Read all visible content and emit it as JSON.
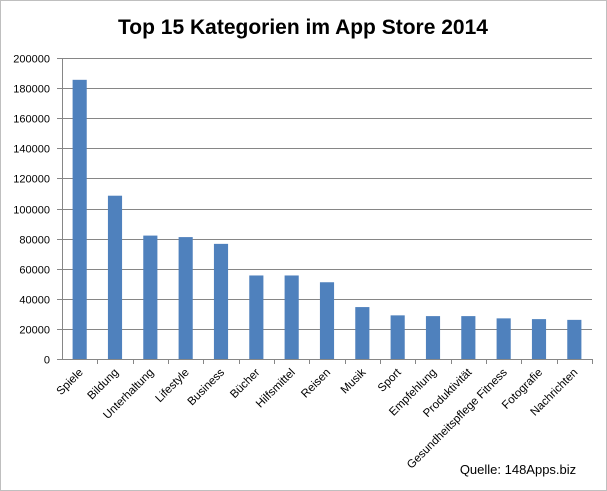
{
  "chart_data": {
    "type": "bar",
    "title": "Top 15 Kategorien im App Store 2014",
    "xlabel": "",
    "ylabel": "",
    "ylim": [
      0,
      200000
    ],
    "yticks": [
      0,
      20000,
      40000,
      60000,
      80000,
      100000,
      120000,
      140000,
      160000,
      180000,
      200000
    ],
    "grid": true,
    "legend": "none",
    "categories": [
      "Spiele",
      "Bildung",
      "Unterhaltung",
      "Lifestyle",
      "Business",
      "Bücher",
      "Hilfsmittel",
      "Reisen",
      "Musik",
      "Sport",
      "Empfehlung",
      "Produktivität",
      "Gesundheitspflege Fitness",
      "Fotografie",
      "Nachrichten"
    ],
    "values": [
      185500,
      108500,
      82000,
      81000,
      76500,
      55500,
      55500,
      51000,
      34500,
      29000,
      28500,
      28500,
      27000,
      26500,
      26000
    ],
    "annotation": "Quelle: 148Apps.biz"
  },
  "colors": {
    "bar": "#4f81bd",
    "grid": "#868686",
    "axis": "#868686",
    "border": "#bfbfbf",
    "text": "#000000"
  }
}
